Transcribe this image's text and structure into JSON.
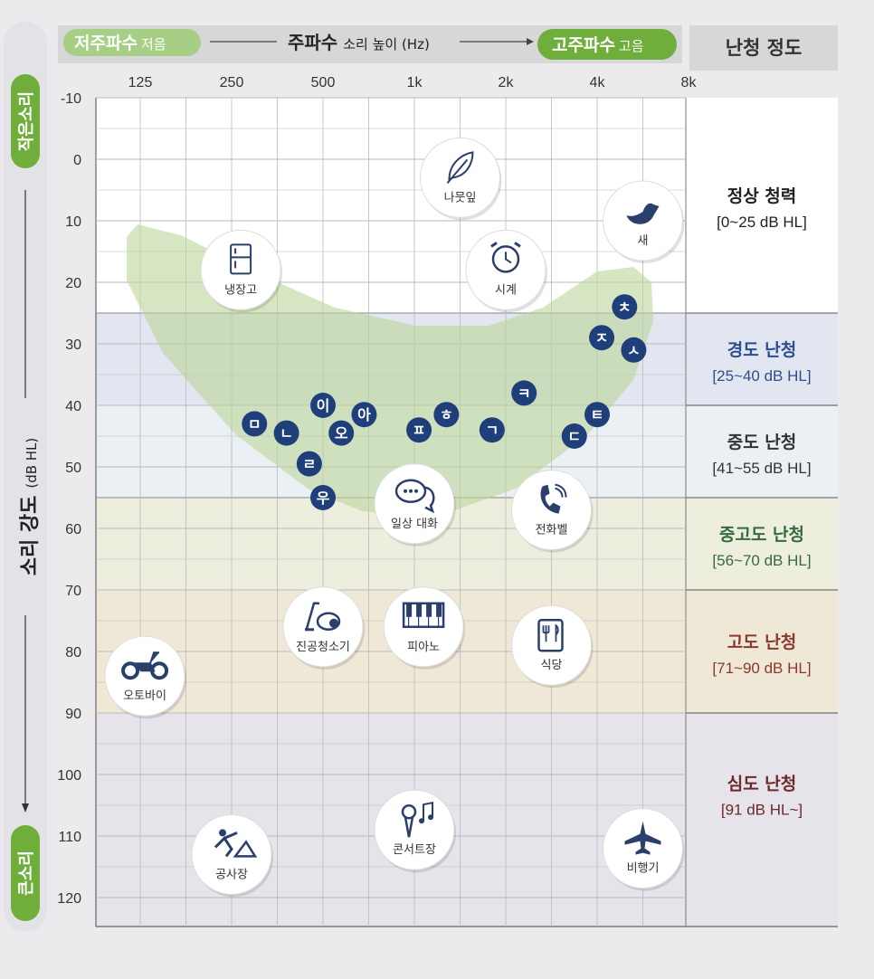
{
  "header": {
    "low_freq_main": "저주파수",
    "low_freq_sub": "저음",
    "title_main": "주파수",
    "title_sub": "소리 높이 (Hz)",
    "high_freq_main": "고주파수",
    "high_freq_sub": "고음",
    "right_title": "난청 정도"
  },
  "y_axis": {
    "title_main": "소리 강도",
    "title_unit": "(dB HL)",
    "top_label": "작은소리",
    "bottom_label": "큰소리"
  },
  "chart_data": {
    "type": "audiogram",
    "x_ticks": [
      "125",
      "250",
      "500",
      "1k",
      "2k",
      "4k",
      "8k"
    ],
    "y_ticks": [
      -10,
      0,
      10,
      20,
      30,
      40,
      50,
      60,
      70,
      80,
      90,
      100,
      110,
      120
    ],
    "ylim": [
      -10,
      120
    ],
    "categories": [
      {
        "name": "정상 청력",
        "range": "[0~25 dB HL]",
        "from": -10,
        "to": 25,
        "band_color": "#ffffff",
        "text_color": "#222222"
      },
      {
        "name": "경도 난청",
        "range": "[25~40 dB HL]",
        "from": 25,
        "to": 40,
        "band_color": "#e2e6f0",
        "text_color": "#2b4e8f"
      },
      {
        "name": "중도 난청",
        "range": "[41~55 dB HL]",
        "from": 40,
        "to": 55,
        "band_color": "#eaf0f4",
        "text_color": "#333333"
      },
      {
        "name": "중고도 난청",
        "range": "[56~70 dB HL]",
        "from": 55,
        "to": 70,
        "band_color": "#eeeedf",
        "text_color": "#356b3a"
      },
      {
        "name": "고도 난청",
        "range": "[71~90 dB HL]",
        "from": 70,
        "to": 90,
        "band_color": "#efe8d6",
        "text_color": "#8a3a2a"
      },
      {
        "name": "심도 난청",
        "range": "[91 dB HL~]",
        "from": 90,
        "to": 125,
        "band_color": "#e6e4ea",
        "text_color": "#6b2a2a"
      }
    ],
    "sounds": [
      {
        "label": "나뭇잎",
        "icon": "leaf-icon",
        "freq_pos": 3.5,
        "db": 3
      },
      {
        "label": "새",
        "icon": "bird-icon",
        "freq_pos": 5.5,
        "db": 10
      },
      {
        "label": "냉장고",
        "icon": "refrigerator-icon",
        "freq_pos": 1.1,
        "db": 18
      },
      {
        "label": "시계",
        "icon": "alarm-clock-icon",
        "freq_pos": 4.0,
        "db": 18
      },
      {
        "label": "일상 대화",
        "icon": "speech-bubbles-icon",
        "freq_pos": 3.0,
        "db": 56
      },
      {
        "label": "전화벨",
        "icon": "phone-icon",
        "freq_pos": 4.5,
        "db": 57
      },
      {
        "label": "진공청소기",
        "icon": "vacuum-icon",
        "freq_pos": 2.0,
        "db": 76
      },
      {
        "label": "피아노",
        "icon": "piano-icon",
        "freq_pos": 3.1,
        "db": 76
      },
      {
        "label": "식당",
        "icon": "restaurant-menu-icon",
        "freq_pos": 4.5,
        "db": 79
      },
      {
        "label": "오토바이",
        "icon": "motorcycle-icon",
        "freq_pos": 0.05,
        "db": 84
      },
      {
        "label": "콘서트장",
        "icon": "microphone-icon",
        "freq_pos": 3.0,
        "db": 109
      },
      {
        "label": "공사장",
        "icon": "construction-icon",
        "freq_pos": 1.0,
        "db": 113
      },
      {
        "label": "비행기",
        "icon": "airplane-icon",
        "freq_pos": 5.5,
        "db": 112
      }
    ],
    "phonemes": [
      {
        "char": "ㅊ",
        "freq_pos": 5.3,
        "db": 24
      },
      {
        "char": "ㅈ",
        "freq_pos": 5.05,
        "db": 29
      },
      {
        "char": "ㅅ",
        "freq_pos": 5.4,
        "db": 31
      },
      {
        "char": "ㅋ",
        "freq_pos": 4.2,
        "db": 38
      },
      {
        "char": "ㅣ",
        "freq_pos": 2.0,
        "db": 40
      },
      {
        "char": "ㅏ",
        "freq_pos": 2.45,
        "db": 41.5
      },
      {
        "char": "ㅎ",
        "freq_pos": 3.35,
        "db": 41.5
      },
      {
        "char": "ㅌ",
        "freq_pos": 5.0,
        "db": 41.5
      },
      {
        "char": "ㅁ",
        "freq_pos": 1.25,
        "db": 43
      },
      {
        "char": "ㄴ",
        "freq_pos": 1.6,
        "db": 44.5
      },
      {
        "char": "ㅗ",
        "freq_pos": 2.2,
        "db": 44.5
      },
      {
        "char": "ㅍ",
        "freq_pos": 3.05,
        "db": 44
      },
      {
        "char": "ㄱ",
        "freq_pos": 3.85,
        "db": 44
      },
      {
        "char": "ㄷ",
        "freq_pos": 4.75,
        "db": 45
      },
      {
        "char": "ㄹ",
        "freq_pos": 1.85,
        "db": 49.5
      },
      {
        "char": "ㅜ",
        "freq_pos": 2.0,
        "db": 55
      }
    ],
    "phoneme_chars_display": [
      "ㅊ",
      "ㅈ",
      "ㅅ",
      "ㅋ",
      "이",
      "아",
      "ㅎ",
      "ㅌ",
      "ㅁ",
      "ㄴ",
      "오",
      "ㅍ",
      "ㄱ",
      "ㄷ",
      "ㄹ",
      "우"
    ],
    "speech_banana_color": "#bcd59a",
    "phoneme_color": "#1f3f7a",
    "accent_green": "#6fae3b"
  }
}
